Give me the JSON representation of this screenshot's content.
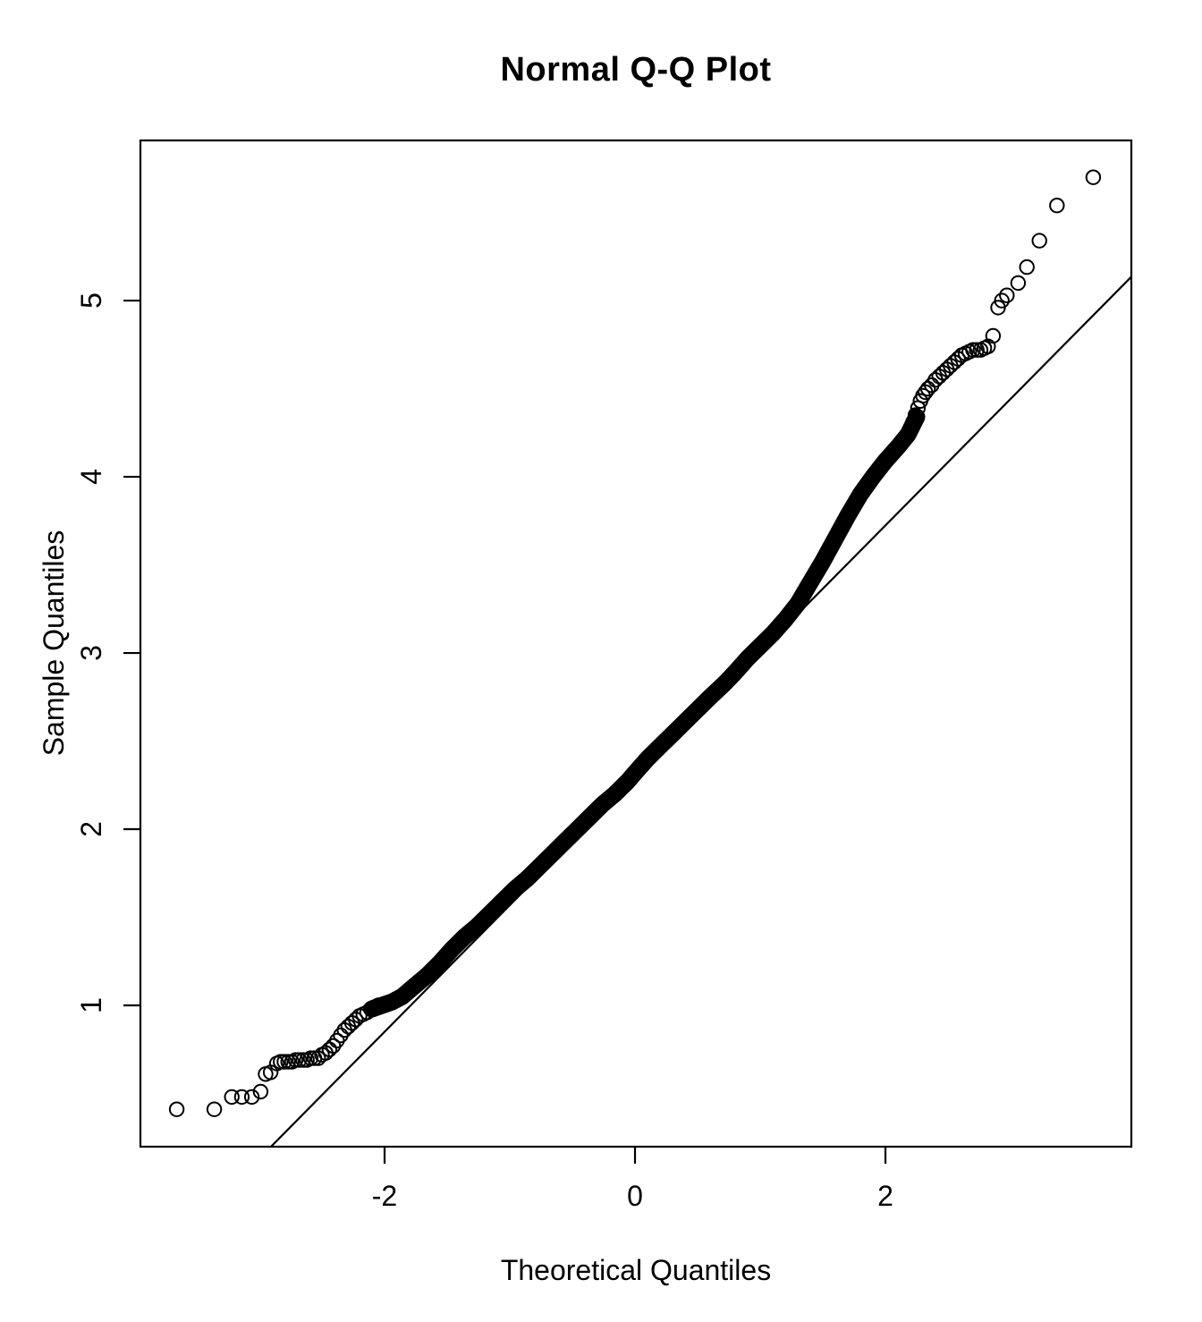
{
  "colors": {
    "foreground": "#000000",
    "background": "#ffffff"
  },
  "chart_data": {
    "type": "scatter",
    "title": "Normal Q-Q Plot",
    "xlabel": "Theoretical Quantiles",
    "ylabel": "Sample Quantiles",
    "x_ticks": [
      -2,
      0,
      2
    ],
    "y_ticks": [
      1,
      2,
      3,
      4,
      5
    ],
    "xlim": [
      -3.95,
      3.964
    ],
    "ylim": [
      0.198,
      5.909
    ],
    "grid": false,
    "legend": null,
    "marker": "open-circle",
    "reference_line": {
      "slope": 0.7185,
      "intercept": 2.287
    },
    "dense_band_centerline": [
      [
        -2.1,
        0.98
      ],
      [
        -2.02,
        1.0
      ],
      [
        -1.94,
        1.02
      ],
      [
        -1.86,
        1.05
      ],
      [
        -1.76,
        1.11
      ],
      [
        -1.66,
        1.17
      ],
      [
        -1.56,
        1.24
      ],
      [
        -1.46,
        1.32
      ],
      [
        -1.36,
        1.39
      ],
      [
        -1.26,
        1.45
      ],
      [
        -1.16,
        1.52
      ],
      [
        -1.06,
        1.59
      ],
      [
        -0.96,
        1.66
      ],
      [
        -0.86,
        1.72
      ],
      [
        -0.76,
        1.79
      ],
      [
        -0.66,
        1.86
      ],
      [
        -0.56,
        1.93
      ],
      [
        -0.46,
        2.0
      ],
      [
        -0.36,
        2.07
      ],
      [
        -0.26,
        2.14
      ],
      [
        -0.16,
        2.2
      ],
      [
        -0.06,
        2.27
      ],
      [
        0.0,
        2.32
      ],
      [
        0.1,
        2.4
      ],
      [
        0.2,
        2.47
      ],
      [
        0.3,
        2.54
      ],
      [
        0.4,
        2.61
      ],
      [
        0.5,
        2.68
      ],
      [
        0.6,
        2.75
      ],
      [
        0.66,
        2.79
      ],
      [
        0.72,
        2.83
      ],
      [
        0.8,
        2.89
      ],
      [
        0.9,
        2.97
      ],
      [
        1.0,
        3.04
      ],
      [
        1.1,
        3.11
      ],
      [
        1.2,
        3.19
      ],
      [
        1.3,
        3.28
      ],
      [
        1.4,
        3.4
      ],
      [
        1.5,
        3.52
      ],
      [
        1.6,
        3.65
      ],
      [
        1.7,
        3.78
      ],
      [
        1.8,
        3.9
      ],
      [
        1.9,
        4.0
      ],
      [
        2.0,
        4.09
      ],
      [
        2.1,
        4.17
      ],
      [
        2.18,
        4.24
      ],
      [
        2.25,
        4.34
      ]
    ],
    "scatter_points": [
      [
        -3.66,
        0.41
      ],
      [
        -3.36,
        0.41
      ],
      [
        -3.22,
        0.48
      ],
      [
        -3.14,
        0.48
      ],
      [
        -3.06,
        0.48
      ],
      [
        -2.99,
        0.51
      ],
      [
        -2.95,
        0.61
      ],
      [
        -2.91,
        0.62
      ],
      [
        -2.86,
        0.67
      ],
      [
        -2.83,
        0.68
      ],
      [
        -2.8,
        0.68
      ],
      [
        -2.77,
        0.68
      ],
      [
        -2.74,
        0.68
      ],
      [
        -2.71,
        0.69
      ],
      [
        -2.68,
        0.69
      ],
      [
        -2.65,
        0.69
      ],
      [
        -2.62,
        0.69
      ],
      [
        -2.59,
        0.7
      ],
      [
        -2.56,
        0.7
      ],
      [
        -2.53,
        0.7
      ],
      [
        -2.5,
        0.72
      ],
      [
        -2.47,
        0.73
      ],
      [
        -2.44,
        0.75
      ],
      [
        -2.41,
        0.77
      ],
      [
        -2.38,
        0.8
      ],
      [
        -2.35,
        0.83
      ],
      [
        -2.32,
        0.86
      ],
      [
        -2.29,
        0.88
      ],
      [
        -2.26,
        0.9
      ],
      [
        -2.23,
        0.92
      ],
      [
        -2.2,
        0.94
      ],
      [
        -2.17,
        0.95
      ],
      [
        -2.14,
        0.96
      ],
      [
        -2.11,
        0.98
      ],
      [
        -2.08,
        0.99
      ],
      [
        -2.05,
        1.0
      ],
      [
        2.22,
        4.31
      ],
      [
        2.24,
        4.35
      ],
      [
        2.26,
        4.39
      ],
      [
        2.28,
        4.43
      ],
      [
        2.3,
        4.46
      ],
      [
        2.32,
        4.48
      ],
      [
        2.34,
        4.5
      ],
      [
        2.37,
        4.52
      ],
      [
        2.4,
        4.55
      ],
      [
        2.43,
        4.57
      ],
      [
        2.46,
        4.59
      ],
      [
        2.49,
        4.61
      ],
      [
        2.52,
        4.63
      ],
      [
        2.55,
        4.65
      ],
      [
        2.58,
        4.67
      ],
      [
        2.61,
        4.69
      ],
      [
        2.64,
        4.7
      ],
      [
        2.67,
        4.71
      ],
      [
        2.7,
        4.72
      ],
      [
        2.73,
        4.72
      ],
      [
        2.76,
        4.72
      ],
      [
        2.79,
        4.73
      ],
      [
        2.82,
        4.74
      ],
      [
        2.86,
        4.8
      ],
      [
        2.9,
        4.96
      ],
      [
        2.93,
        5.0
      ],
      [
        2.97,
        5.03
      ],
      [
        3.06,
        5.1
      ],
      [
        3.13,
        5.19
      ],
      [
        3.23,
        5.34
      ],
      [
        3.37,
        5.54
      ],
      [
        3.66,
        5.7
      ]
    ]
  }
}
